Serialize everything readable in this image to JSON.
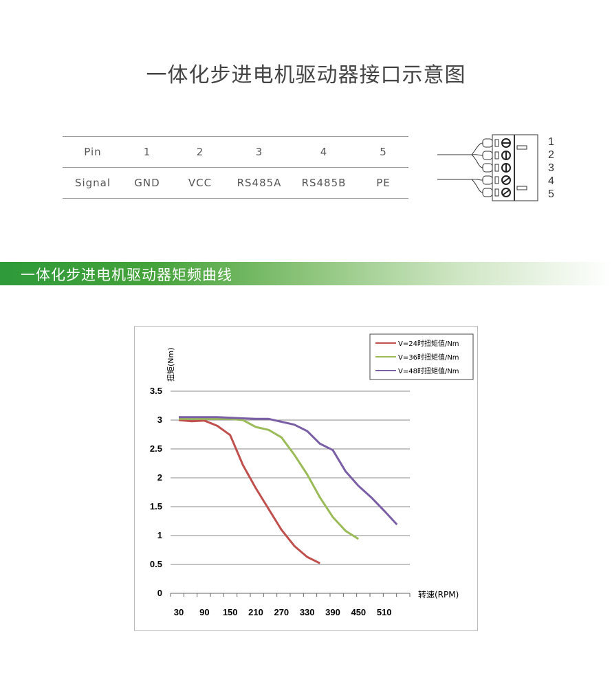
{
  "title": "一体化步进电机驱动器接口示意图",
  "pin_table": {
    "rows": [
      [
        "Pin",
        "1",
        "2",
        "3",
        "4",
        "5"
      ],
      [
        "Signal",
        "GND",
        "VCC",
        "RS485A",
        "RS485B",
        "PE"
      ]
    ]
  },
  "connector": {
    "pin_labels": [
      "1",
      "2",
      "3",
      "4",
      "5"
    ]
  },
  "banner": {
    "title": "一体化步进电机驱动器矩频曲线"
  },
  "chart_data": {
    "type": "line",
    "title": "",
    "ylabel": "扭矩(Nm)",
    "xlabel": "转速(RPM)",
    "ylim": [
      0,
      3.5
    ],
    "yticks": [
      "0",
      "0.5",
      "1",
      "1.5",
      "2",
      "2.5",
      "3",
      "3.5"
    ],
    "xticks": [
      "30",
      "90",
      "150",
      "210",
      "270",
      "330",
      "390",
      "450",
      "510"
    ],
    "legend_position": "top-right",
    "grid": "horizontal",
    "series": [
      {
        "name": "V=24时扭矩值/Nm",
        "color": "#c0504d",
        "x": [
          30,
          60,
          90,
          120,
          150,
          180,
          210,
          240,
          270,
          300,
          330,
          360
        ],
        "y": [
          3.0,
          2.98,
          2.99,
          2.9,
          2.74,
          2.22,
          1.82,
          1.46,
          1.1,
          0.82,
          0.63,
          0.52
        ]
      },
      {
        "name": "V=36时扭矩值/Nm",
        "color": "#9bbb59",
        "x": [
          30,
          60,
          90,
          120,
          150,
          180,
          210,
          240,
          270,
          300,
          330,
          360,
          390,
          420,
          450
        ],
        "y": [
          3.02,
          3.02,
          3.02,
          3.02,
          3.02,
          3.0,
          2.88,
          2.83,
          2.7,
          2.4,
          2.06,
          1.66,
          1.32,
          1.08,
          0.94
        ]
      },
      {
        "name": "V=48时扭矩值/Nm",
        "color": "#7a5fa6",
        "x": [
          30,
          60,
          90,
          120,
          150,
          180,
          210,
          240,
          270,
          300,
          330,
          360,
          390,
          420,
          450,
          480,
          510,
          540
        ],
        "y": [
          3.05,
          3.05,
          3.05,
          3.05,
          3.04,
          3.03,
          3.02,
          3.02,
          2.97,
          2.92,
          2.81,
          2.59,
          2.48,
          2.11,
          1.86,
          1.66,
          1.43,
          1.19
        ]
      }
    ]
  }
}
